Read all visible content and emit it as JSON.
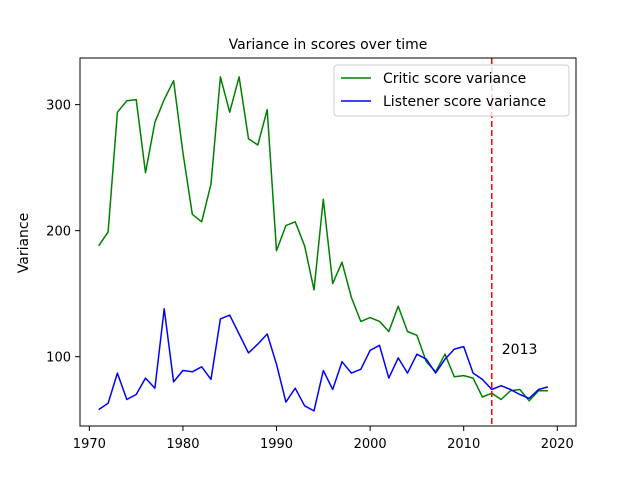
{
  "chart_data": {
    "type": "line",
    "title": "Variance in scores over time",
    "xlabel": "",
    "ylabel": "Variance",
    "xlim": [
      1969,
      2022
    ],
    "ylim": [
      45,
      337
    ],
    "xticks": [
      1970,
      1980,
      1990,
      2000,
      2010,
      2020
    ],
    "yticks": [
      100,
      200,
      300
    ],
    "grid": false,
    "legend_position": "top-right",
    "x": [
      1971,
      1972,
      1973,
      1974,
      1975,
      1976,
      1977,
      1978,
      1979,
      1980,
      1981,
      1982,
      1983,
      1984,
      1985,
      1986,
      1987,
      1988,
      1989,
      1990,
      1991,
      1992,
      1993,
      1994,
      1995,
      1996,
      1997,
      1998,
      1999,
      2000,
      2001,
      2002,
      2003,
      2004,
      2005,
      2006,
      2007,
      2008,
      2009,
      2010,
      2011,
      2012,
      2013,
      2014,
      2015,
      2016,
      2017,
      2018,
      2019
    ],
    "series": [
      {
        "name": "Critic score variance",
        "color": "#008000",
        "values": [
          188,
          199,
          294,
          303,
          304,
          246,
          286,
          304,
          319,
          262,
          213,
          207,
          237,
          322,
          294,
          322,
          273,
          268,
          296,
          184,
          204,
          207,
          188,
          153,
          225,
          158,
          175,
          147,
          128,
          131,
          128,
          120,
          140,
          120,
          117,
          96,
          88,
          102,
          84,
          85,
          83,
          68,
          71,
          66,
          73,
          74,
          65,
          73,
          73
        ]
      },
      {
        "name": "Listener score variance",
        "color": "#0000ff",
        "values": [
          58,
          63,
          87,
          66,
          70,
          83,
          75,
          138,
          80,
          89,
          88,
          92,
          82,
          130,
          133,
          118,
          103,
          110,
          118,
          94,
          64,
          75,
          61,
          57,
          89,
          74,
          96,
          87,
          90,
          105,
          109,
          83,
          99,
          87,
          102,
          98,
          87,
          98,
          106,
          108,
          87,
          82,
          74,
          77,
          74,
          70,
          67,
          74,
          76
        ]
      }
    ],
    "vline": {
      "x": 2013,
      "label": "2013",
      "color": "#ff0000"
    }
  }
}
